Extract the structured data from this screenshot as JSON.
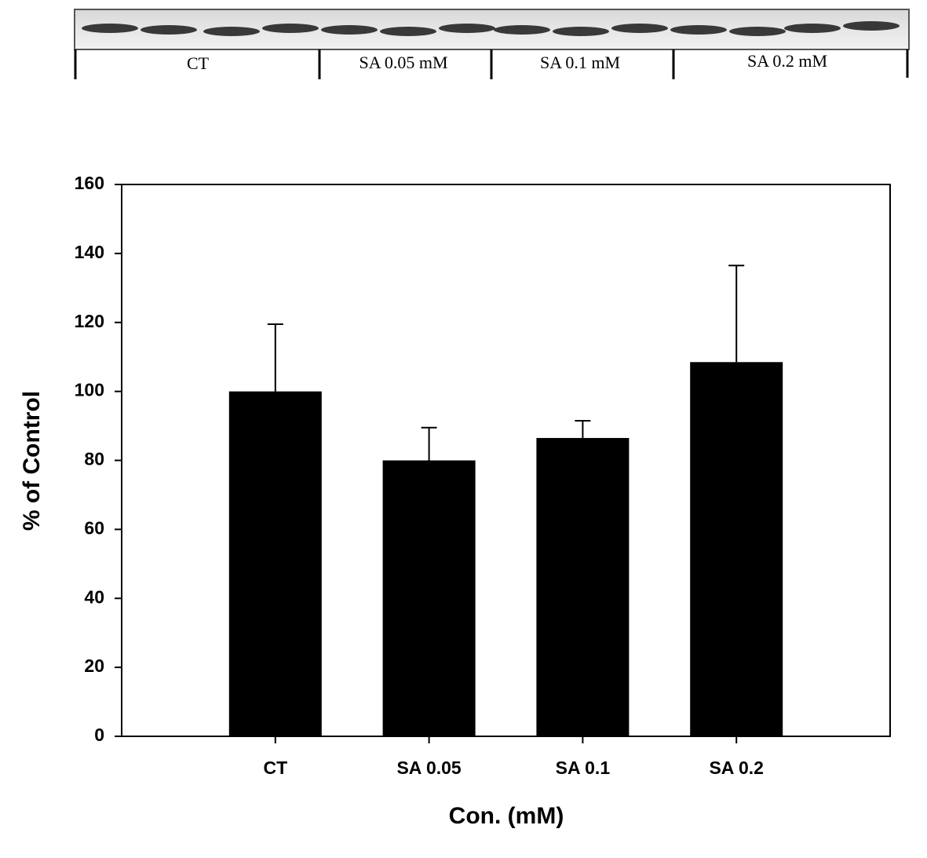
{
  "blot": {
    "labels": [
      "CT",
      "SA  0.05 mM",
      "SA  0.1 mM",
      "SA  0.2 mM"
    ]
  },
  "chart_data": {
    "type": "bar",
    "ylabel": "% of Control",
    "xlabel": "Con. (mM)",
    "categories": [
      "CT",
      "SA 0.05",
      "SA 0.1",
      "SA 0.2"
    ],
    "values": [
      100,
      80,
      86.5,
      108.5
    ],
    "errors": [
      19.5,
      9.5,
      5,
      28
    ],
    "color": "#000000",
    "ylim": [
      0,
      160
    ],
    "yticks": [
      0,
      20,
      40,
      60,
      80,
      100,
      120,
      140,
      160
    ]
  }
}
